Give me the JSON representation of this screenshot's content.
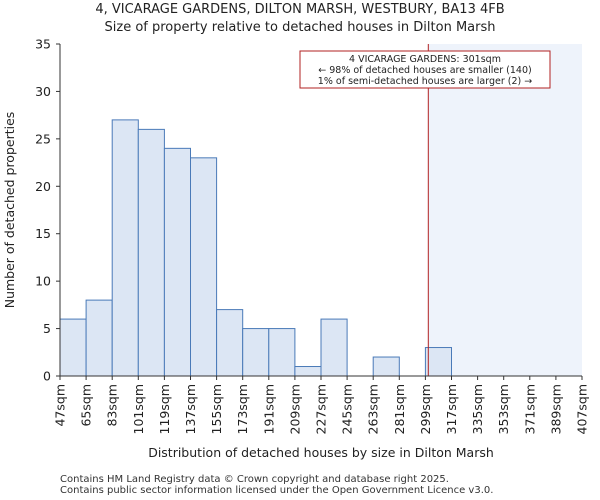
{
  "title_line1": "4, VICARAGE GARDENS, DILTON MARSH, WESTBURY, BA13 4FB",
  "title_line2": "Size of property relative to detached houses in Dilton Marsh",
  "footer_line1": "Contains HM Land Registry data © Crown copyright and database right 2025.",
  "footer_line2": "Contains public sector information licensed under the Open Government Licence v3.0.",
  "colors": {
    "bar_fill": "#dce6f4",
    "bar_stroke": "#4a7ab8",
    "marker_line": "#b22222",
    "shade_fill": "#eef3fb",
    "annotation_border": "#b22222"
  },
  "chart_data": {
    "type": "bar",
    "title": "Size of property relative to detached houses in Dilton Marsh",
    "xlabel": "Distribution of detached houses by size in Dilton Marsh",
    "ylabel": "Number of detached properties",
    "bin_edges": [
      47,
      65,
      83,
      101,
      119,
      137,
      155,
      173,
      191,
      209,
      227,
      245,
      263,
      281,
      299,
      317,
      335,
      353,
      371,
      389,
      407
    ],
    "tick_labels": [
      "47sqm",
      "65sqm",
      "83sqm",
      "101sqm",
      "119sqm",
      "137sqm",
      "155sqm",
      "173sqm",
      "191sqm",
      "209sqm",
      "227sqm",
      "245sqm",
      "263sqm",
      "281sqm",
      "299sqm",
      "317sqm",
      "335sqm",
      "353sqm",
      "371sqm",
      "389sqm",
      "407sqm"
    ],
    "values": [
      6,
      8,
      27,
      26,
      24,
      23,
      7,
      5,
      5,
      1,
      6,
      0,
      2,
      0,
      3,
      0,
      0,
      0,
      0,
      0
    ],
    "ylim": [
      0,
      35
    ],
    "yticks": [
      0,
      5,
      10,
      15,
      20,
      25,
      30,
      35
    ],
    "xlim": [
      47,
      407
    ],
    "marker_value": 301,
    "annotation": {
      "line1": "4 VICARAGE GARDENS: 301sqm",
      "line2": "← 98% of detached houses are smaller (140)",
      "line3": "1% of semi-detached houses are larger (2) →"
    }
  }
}
